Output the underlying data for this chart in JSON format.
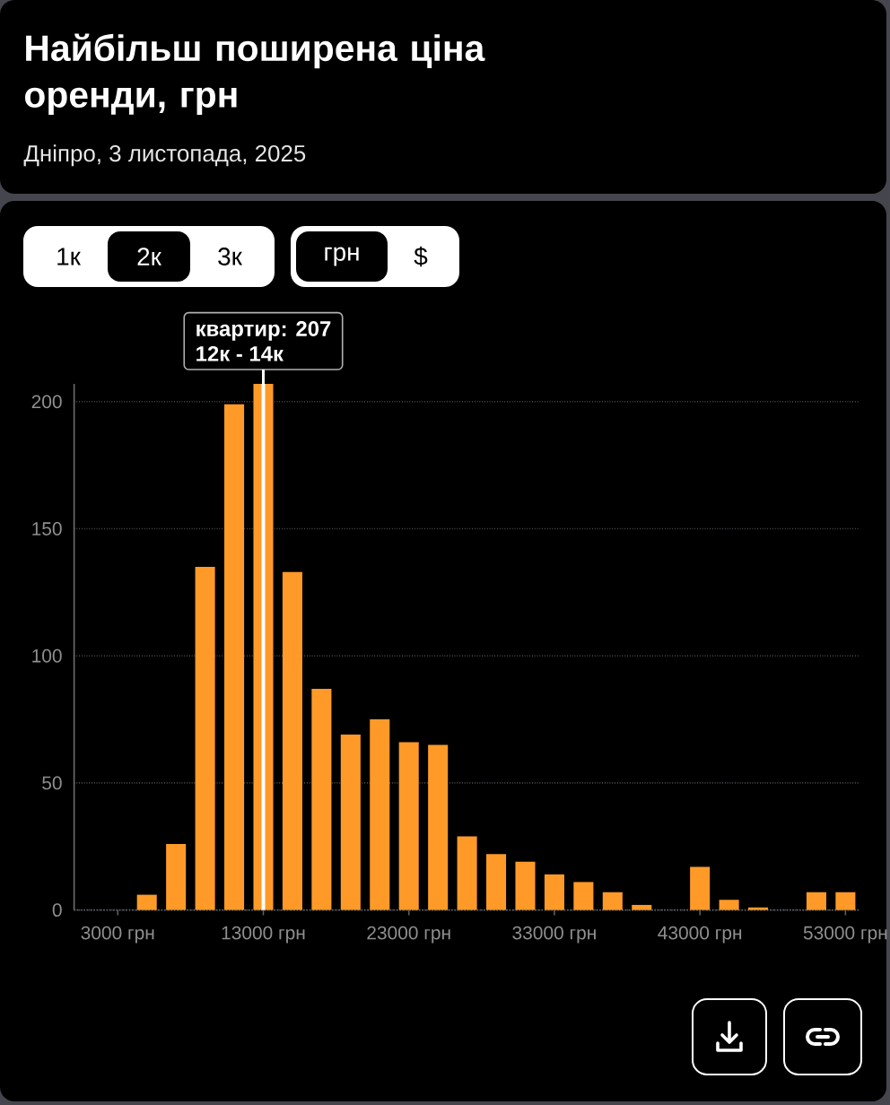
{
  "chart_data": {
    "type": "histogram",
    "title": "Найбільш поширена ціна оренди, грн",
    "subtitle": "Дніпро, 3 листопада, 2025",
    "bins": [
      4000,
      6000,
      8000,
      10000,
      12000,
      14000,
      16000,
      18000,
      20000,
      22000,
      24000,
      26000,
      28000,
      30000,
      32000,
      34000,
      36000,
      38000,
      40000,
      42000,
      44000,
      46000,
      48000,
      50000,
      52000,
      54000
    ],
    "values": [
      6,
      26,
      135,
      199,
      207,
      133,
      87,
      69,
      75,
      66,
      65,
      29,
      22,
      19,
      14,
      11,
      7,
      2,
      0,
      17,
      4,
      1,
      0,
      7,
      7
    ],
    "color": "#ff9a28",
    "xlim": [
      0,
      54000
    ],
    "ylim": [
      0,
      207
    ],
    "xticks": [
      {
        "value": 3000,
        "label": "3000 грн"
      },
      {
        "value": 13000,
        "label": "13000 грн"
      },
      {
        "value": 23000,
        "label": "23000 грн"
      },
      {
        "value": 33000,
        "label": "33000 грн"
      },
      {
        "value": 43000,
        "label": "43000 грн"
      },
      {
        "value": 53000,
        "label": "53000 грн"
      }
    ],
    "yticks": [
      0,
      50,
      100,
      150,
      200
    ],
    "grid": "y",
    "ref_lines": [
      {
        "axis": "x",
        "value": 13000,
        "color": "#ffffff"
      }
    ],
    "annotations": [
      "1к",
      "2к",
      "3к",
      "грн",
      "$",
      {
        "text": "квартир: 207",
        "x": 13000,
        "y": 207
      },
      {
        "text": "12к - 14к",
        "x": 13000,
        "y": 207
      }
    ]
  }
}
